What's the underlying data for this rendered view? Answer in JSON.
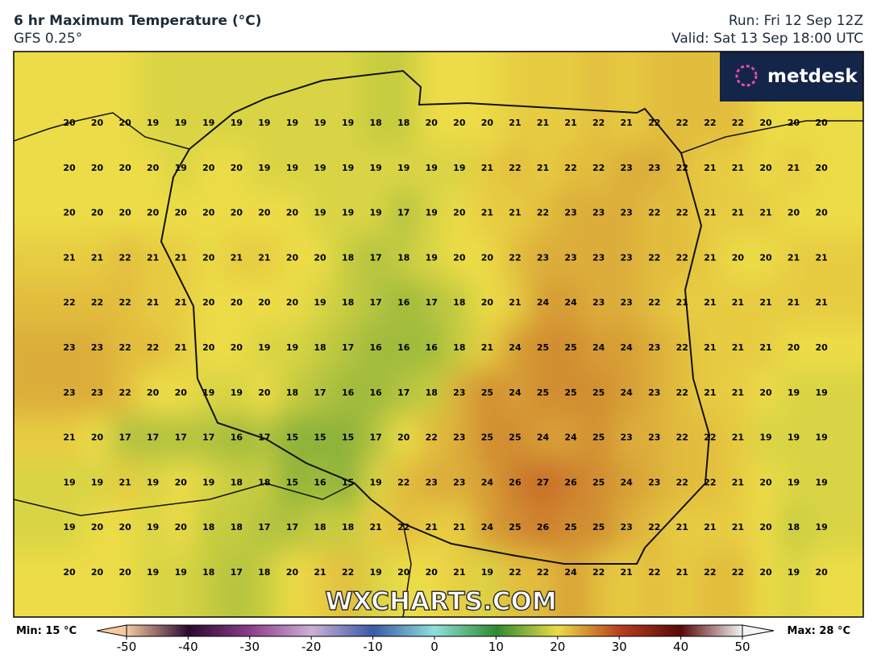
{
  "header": {
    "title": "6 hr Maximum Temperature (°C)",
    "subtitle": "GFS 0.25°",
    "run": "Run: Fri 12 Sep 12Z",
    "valid": "Valid: Sat 13 Sep 18:00 UTC"
  },
  "logo": "metdesk",
  "watermark": "WXCHARTS.COM",
  "grid": {
    "values": [
      [
        20,
        20,
        20,
        19,
        19,
        19,
        19,
        19,
        19,
        19,
        19,
        18,
        18,
        20,
        20,
        20,
        21,
        21,
        21,
        22,
        21,
        22,
        22,
        22,
        22,
        20,
        20,
        20
      ],
      [
        20,
        20,
        20,
        20,
        19,
        20,
        20,
        19,
        19,
        19,
        19,
        19,
        19,
        19,
        19,
        21,
        22,
        21,
        22,
        22,
        23,
        23,
        22,
        21,
        21,
        20,
        21,
        20
      ],
      [
        20,
        20,
        20,
        20,
        20,
        20,
        20,
        20,
        20,
        19,
        19,
        19,
        17,
        19,
        20,
        21,
        21,
        22,
        23,
        23,
        23,
        22,
        22,
        21,
        21,
        21,
        20,
        20
      ],
      [
        21,
        21,
        22,
        21,
        21,
        20,
        21,
        21,
        20,
        20,
        18,
        17,
        18,
        19,
        20,
        20,
        22,
        23,
        23,
        23,
        23,
        22,
        22,
        21,
        20,
        20,
        21,
        21
      ],
      [
        22,
        22,
        22,
        21,
        21,
        20,
        20,
        20,
        20,
        19,
        18,
        17,
        16,
        17,
        18,
        20,
        21,
        24,
        24,
        23,
        23,
        22,
        21,
        21,
        21,
        21,
        21,
        21
      ],
      [
        23,
        23,
        22,
        22,
        21,
        20,
        20,
        19,
        19,
        18,
        17,
        16,
        16,
        16,
        18,
        21,
        24,
        25,
        25,
        24,
        24,
        23,
        22,
        21,
        21,
        21,
        20,
        20
      ],
      [
        23,
        23,
        22,
        20,
        20,
        19,
        19,
        20,
        18,
        17,
        16,
        16,
        17,
        18,
        23,
        25,
        24,
        25,
        25,
        25,
        24,
        23,
        22,
        21,
        21,
        20,
        19,
        19
      ],
      [
        21,
        20,
        17,
        17,
        17,
        17,
        16,
        17,
        15,
        15,
        15,
        17,
        20,
        22,
        23,
        25,
        25,
        24,
        24,
        25,
        23,
        23,
        22,
        22,
        21,
        19,
        19,
        19
      ],
      [
        19,
        19,
        21,
        19,
        20,
        19,
        18,
        18,
        15,
        16,
        15,
        19,
        22,
        23,
        23,
        24,
        26,
        27,
        26,
        25,
        24,
        23,
        22,
        22,
        21,
        20,
        19,
        19
      ],
      [
        19,
        20,
        20,
        19,
        20,
        18,
        18,
        17,
        17,
        18,
        18,
        21,
        22,
        21,
        21,
        24,
        25,
        26,
        25,
        25,
        23,
        22,
        21,
        21,
        21,
        20,
        18,
        19
      ],
      [
        20,
        20,
        20,
        19,
        19,
        18,
        17,
        18,
        20,
        21,
        22,
        19,
        20,
        20,
        21,
        19,
        22,
        22,
        24,
        22,
        21,
        22,
        21,
        22,
        22,
        20,
        19,
        20
      ]
    ]
  },
  "colorbar": {
    "min_label": "Min: 15 °C",
    "max_label": "Max: 28 °C",
    "ticks": [
      -50,
      -40,
      -30,
      -20,
      -10,
      0,
      10,
      20,
      30,
      40,
      50
    ],
    "colors": [
      "#f6c9a3",
      "#2a0a2e",
      "#8c3c8c",
      "#cdb0d4",
      "#3a5aa8",
      "#8fe0dc",
      "#2e8a2e",
      "#ecdc46",
      "#b8401e",
      "#5a0808",
      "#f4f4f4"
    ]
  }
}
